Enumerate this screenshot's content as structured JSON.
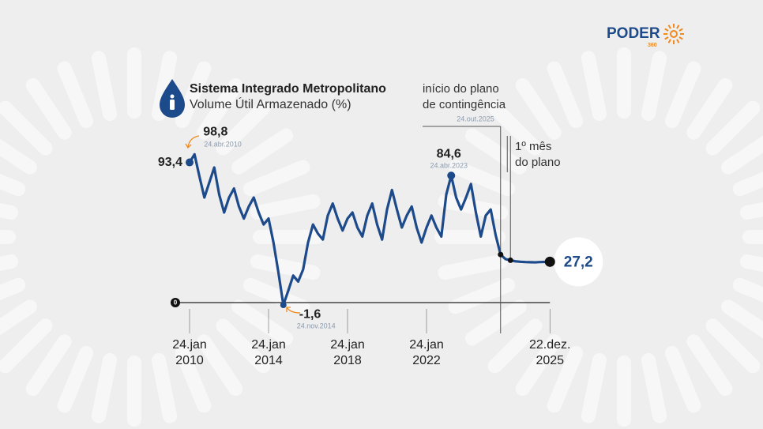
{
  "logo": {
    "name": "PODER",
    "number": "360"
  },
  "chart_data": {
    "type": "line",
    "title": "Sistema Integrado Metropolitano",
    "subtitle": "Volume Útil Armazenado (%)",
    "categories": [
      "24.jan\n2010",
      null,
      null,
      null,
      null,
      null,
      null,
      null,
      null,
      null,
      null,
      null,
      null,
      null,
      null,
      null,
      "24.jan\n2014",
      null,
      null,
      null,
      null,
      null,
      null,
      null,
      null,
      null,
      null,
      null,
      null,
      null,
      null,
      null,
      "24.jan\n2018",
      null,
      null,
      null,
      null,
      null,
      null,
      null,
      null,
      null,
      null,
      null,
      null,
      null,
      null,
      null,
      "24.jan\n2022",
      null,
      null,
      null,
      null,
      null,
      null,
      null,
      null,
      null,
      null,
      null,
      null,
      null,
      null,
      null,
      null,
      null,
      null,
      null,
      null,
      null,
      null,
      null,
      null,
      "22.dez.\n2025"
    ],
    "series": [
      {
        "name": null,
        "color": "#1d4a8a",
        "values": [
          93.4,
          98.8,
          84,
          70,
          80,
          90,
          72,
          60,
          70,
          76,
          64,
          56,
          64,
          70,
          60,
          52,
          56,
          40,
          20,
          -1.6,
          8,
          18,
          14,
          22,
          40,
          52,
          46,
          42,
          58,
          66,
          56,
          48,
          56,
          60,
          50,
          44,
          58,
          66,
          52,
          42,
          62,
          75,
          62,
          50,
          58,
          64,
          50,
          40,
          50,
          58,
          50,
          44,
          72,
          84.6,
          70,
          62,
          70,
          79,
          60,
          44,
          58,
          62,
          45,
          32,
          29,
          28.2,
          27.5,
          27.2,
          27,
          26.9,
          26.8,
          27,
          27.1,
          27.2
        ],
        "value_labels": [
          "93,4",
          "98,8",
          null,
          null,
          null,
          null,
          null,
          null,
          null,
          null,
          null,
          null,
          null,
          null,
          null,
          null,
          null,
          null,
          null,
          "-1,6",
          null,
          null,
          null,
          null,
          null,
          null,
          null,
          null,
          null,
          null,
          null,
          null,
          null,
          null,
          null,
          null,
          null,
          null,
          null,
          null,
          null,
          null,
          null,
          null,
          null,
          null,
          null,
          null,
          null,
          null,
          null,
          null,
          null,
          "84,6",
          null,
          null,
          null,
          null,
          null,
          null,
          null,
          null,
          null,
          null,
          null,
          null,
          null,
          null,
          null,
          null,
          null,
          null,
          null,
          "27,2"
        ],
        "value_notes": [
          null,
          "24.abr.2010",
          null,
          null,
          null,
          null,
          null,
          null,
          null,
          null,
          null,
          null,
          null,
          null,
          null,
          null,
          null,
          null,
          null,
          "24.nov.2014",
          null,
          null,
          null,
          null,
          null,
          null,
          null,
          null,
          null,
          null,
          null,
          null,
          null,
          null,
          null,
          null,
          null,
          null,
          null,
          null,
          null,
          null,
          null,
          null,
          null,
          null,
          null,
          null,
          null,
          null,
          null,
          null,
          null,
          "24.abr.2023",
          null,
          null,
          null,
          null,
          null,
          null,
          null,
          null,
          null,
          "24.out.2025",
          null,
          null,
          null,
          null,
          null,
          null,
          null,
          null,
          null,
          null
        ],
        "callouts": [
          null,
          null,
          null,
          null,
          null,
          null,
          null,
          null,
          null,
          null,
          null,
          null,
          null,
          null,
          null,
          null,
          null,
          null,
          null,
          null,
          null,
          null,
          null,
          null,
          null,
          null,
          null,
          null,
          null,
          null,
          null,
          null,
          null,
          null,
          null,
          null,
          null,
          null,
          null,
          null,
          null,
          null,
          null,
          null,
          null,
          null,
          null,
          null,
          null,
          null,
          null,
          null,
          null,
          null,
          null,
          null,
          null,
          null,
          null,
          null,
          null,
          null,
          null,
          "início do plano\nde contingência",
          null,
          "1º mês\ndo plano",
          null,
          null,
          null,
          null,
          null,
          null,
          null,
          null
        ]
      }
    ],
    "ylim": [
      -5,
      105
    ],
    "yticks": [
      0
    ]
  }
}
